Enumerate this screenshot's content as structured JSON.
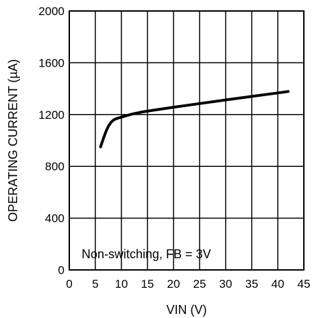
{
  "chart_data": {
    "type": "line",
    "title": "",
    "xlabel": "VIN (V)",
    "ylabel": "OPERATING CURRENT (µA)",
    "xlim": [
      0,
      45
    ],
    "ylim": [
      0,
      2000
    ],
    "x_ticks": [
      0,
      5,
      10,
      15,
      20,
      25,
      30,
      35,
      40,
      45
    ],
    "y_ticks": [
      0,
      400,
      800,
      1200,
      1600,
      2000
    ],
    "x_tick_labels": [
      "0",
      "5",
      "10",
      "15",
      "20",
      "25",
      "30",
      "35",
      "40",
      "45"
    ],
    "y_tick_labels": [
      "0",
      "400",
      "800",
      "1200",
      "1600",
      "2000"
    ],
    "grid": true,
    "annotation": "Non-switching, FB = 3V",
    "series": [
      {
        "x": [
          6,
          6.5,
          7,
          7.5,
          8,
          8.5,
          9,
          10,
          11,
          12,
          14,
          16,
          20,
          25,
          30,
          35,
          40,
          42
        ],
        "y": [
          950,
          1010,
          1065,
          1110,
          1140,
          1158,
          1168,
          1180,
          1192,
          1203,
          1220,
          1233,
          1257,
          1285,
          1313,
          1340,
          1367,
          1378
        ]
      }
    ],
    "color": "#000000"
  }
}
